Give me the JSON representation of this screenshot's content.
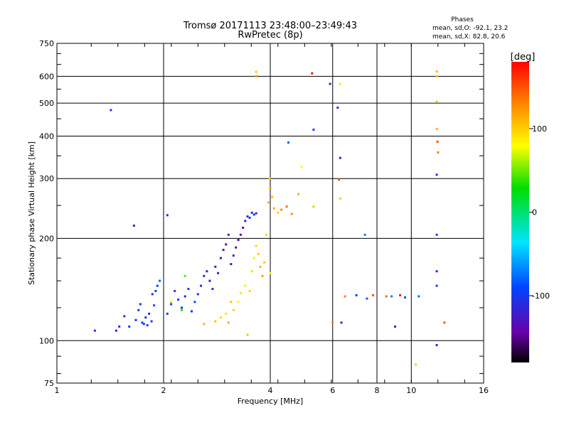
{
  "chart_data": {
    "type": "scatter",
    "title": "Tromsø 20171113 23:48:00–23:49:43",
    "subtitle": "RwPretec (8p)",
    "xlabel": "Frequency [MHz]",
    "ylabel": "Stationary phase Virtual Height [km]",
    "x_scale": "log2",
    "y_scale": "log",
    "xlim": [
      1,
      16
    ],
    "ylim": [
      75,
      750
    ],
    "x_ticks": [
      1,
      2,
      4,
      6,
      8,
      10,
      16
    ],
    "x_tick_labels": [
      "1",
      "2",
      "4",
      "6",
      "8",
      "10",
      "16"
    ],
    "y_ticks": [
      75,
      100,
      200,
      300,
      400,
      500,
      600,
      750
    ],
    "y_tick_labels": [
      "75",
      "100",
      "200",
      "300",
      "400",
      "500",
      "600",
      "750"
    ],
    "grid": true,
    "legend": {
      "title": "Phases",
      "lines": [
        "mean, sd,O: -92.1, 23.2",
        "mean, sd,X: 82.8, 20.6"
      ],
      "position": "top-right"
    },
    "colorbar": {
      "label": "[deg]",
      "range": [
        -180,
        180
      ],
      "ticks": [
        -100,
        0,
        100
      ],
      "tick_labels": [
        "-100",
        "0",
        "100"
      ]
    },
    "series": [
      {
        "values": [
          [
            1.28,
            107,
            -100
          ],
          [
            1.47,
            107,
            -110
          ],
          [
            1.5,
            110,
            -105
          ],
          [
            1.55,
            118,
            -100
          ],
          [
            1.6,
            110,
            -95
          ],
          [
            1.67,
            115,
            -100
          ],
          [
            1.7,
            123,
            -105
          ],
          [
            1.72,
            128,
            -100
          ],
          [
            1.74,
            113,
            -90
          ],
          [
            1.76,
            112,
            -100
          ],
          [
            1.78,
            117,
            -110
          ],
          [
            1.8,
            111,
            -95
          ],
          [
            1.82,
            120,
            -100
          ],
          [
            1.85,
            114,
            -92
          ],
          [
            1.86,
            137,
            -100
          ],
          [
            1.88,
            127,
            -85
          ],
          [
            1.9,
            140,
            -95
          ],
          [
            1.92,
            145,
            -100
          ],
          [
            1.95,
            150,
            -80
          ],
          [
            2.05,
            120,
            -100
          ],
          [
            2.1,
            128,
            -95
          ],
          [
            2.15,
            140,
            -105
          ],
          [
            2.2,
            132,
            -90
          ],
          [
            2.25,
            125,
            -100
          ],
          [
            2.3,
            135,
            -110
          ],
          [
            2.35,
            142,
            -95
          ],
          [
            2.4,
            122,
            -100
          ],
          [
            2.45,
            130,
            -85
          ],
          [
            2.5,
            137,
            -100
          ],
          [
            2.55,
            145,
            -105
          ],
          [
            2.6,
            155,
            -110
          ],
          [
            2.65,
            160,
            -120
          ],
          [
            2.7,
            150,
            -125
          ],
          [
            2.75,
            142,
            -100
          ],
          [
            2.8,
            165,
            -130
          ],
          [
            2.85,
            158,
            -125
          ],
          [
            2.9,
            175,
            -135
          ],
          [
            2.95,
            185,
            -130
          ],
          [
            3.0,
            192,
            -140
          ],
          [
            3.05,
            205,
            -135
          ],
          [
            3.1,
            168,
            -130
          ],
          [
            3.15,
            178,
            -128
          ],
          [
            3.2,
            188,
            -140
          ],
          [
            3.25,
            198,
            -135
          ],
          [
            3.3,
            205,
            -130
          ],
          [
            3.35,
            215,
            -140
          ],
          [
            3.4,
            225,
            -125
          ],
          [
            3.45,
            232,
            -110
          ],
          [
            3.5,
            230,
            -100
          ],
          [
            3.55,
            238,
            -105
          ],
          [
            3.6,
            235,
            -110
          ],
          [
            3.65,
            237,
            -100
          ],
          [
            1.42,
            477,
            -100
          ],
          [
            1.65,
            218,
            -110
          ],
          [
            2.05,
            234,
            -105
          ],
          [
            4.5,
            383,
            -80
          ],
          [
            5.3,
            418,
            -90
          ],
          [
            5.9,
            570,
            -120
          ],
          [
            6.2,
            485,
            -110
          ],
          [
            6.3,
            345,
            -130
          ],
          [
            7.4,
            205,
            -70
          ],
          [
            7.0,
            136,
            -90
          ],
          [
            7.5,
            133,
            -80
          ],
          [
            8.8,
            135,
            -70
          ],
          [
            9.6,
            134,
            -85
          ],
          [
            10.5,
            135,
            -75
          ],
          [
            11.8,
            205,
            -90
          ],
          [
            11.8,
            308,
            -100
          ],
          [
            11.8,
            97,
            -120
          ],
          [
            11.8,
            160,
            -120
          ],
          [
            11.8,
            145,
            -105
          ],
          [
            6.35,
            113,
            -120
          ],
          [
            9.0,
            110,
            -110
          ]
        ]
      },
      {
        "values": [
          [
            2.6,
            112,
            110
          ],
          [
            2.8,
            114,
            105
          ],
          [
            2.9,
            117,
            95
          ],
          [
            3.0,
            120,
            90
          ],
          [
            3.05,
            113,
            115
          ],
          [
            3.1,
            130,
            105
          ],
          [
            3.15,
            123,
            95
          ],
          [
            3.25,
            130,
            80
          ],
          [
            3.3,
            138,
            90
          ],
          [
            3.4,
            145,
            85
          ],
          [
            3.5,
            140,
            95
          ],
          [
            3.55,
            160,
            70
          ],
          [
            3.6,
            175,
            85
          ],
          [
            3.65,
            190,
            95
          ],
          [
            3.7,
            180,
            100
          ],
          [
            3.75,
            165,
            110
          ],
          [
            3.8,
            155,
            120
          ],
          [
            3.85,
            170,
            105
          ],
          [
            3.9,
            205,
            95
          ],
          [
            3.95,
            255,
            110
          ],
          [
            4.0,
            280,
            120
          ],
          [
            4.05,
            265,
            105
          ],
          [
            4.1,
            245,
            115
          ],
          [
            4.2,
            238,
            95
          ],
          [
            4.3,
            243,
            130
          ],
          [
            4.45,
            248,
            140
          ],
          [
            4.6,
            236,
            125
          ],
          [
            4.8,
            270,
            110
          ],
          [
            3.98,
            300,
            100
          ],
          [
            4.0,
            158,
            80
          ],
          [
            3.65,
            618,
            100
          ],
          [
            3.65,
            600,
            120
          ],
          [
            5.25,
            612,
            180
          ],
          [
            6.3,
            570,
            90
          ],
          [
            6.25,
            298,
            150
          ],
          [
            6.0,
            113,
            130
          ],
          [
            6.3,
            262,
            100
          ],
          [
            5.3,
            248,
            60
          ],
          [
            4.9,
            325,
            80
          ],
          [
            11.8,
            620,
            110
          ],
          [
            11.8,
            600,
            105
          ],
          [
            11.8,
            505,
            100
          ],
          [
            11.8,
            420,
            110
          ],
          [
            11.85,
            385,
            150
          ],
          [
            11.9,
            358,
            130
          ],
          [
            12.4,
            113,
            150
          ],
          [
            10.3,
            85,
            100
          ],
          [
            8.5,
            135,
            140
          ],
          [
            6.5,
            135,
            130
          ],
          [
            7.8,
            136,
            150
          ],
          [
            9.3,
            136,
            170
          ],
          [
            3.45,
            104,
            60
          ],
          [
            2.25,
            123,
            40
          ],
          [
            2.3,
            155,
            45
          ],
          [
            2.1,
            130,
            70
          ]
        ]
      }
    ]
  }
}
